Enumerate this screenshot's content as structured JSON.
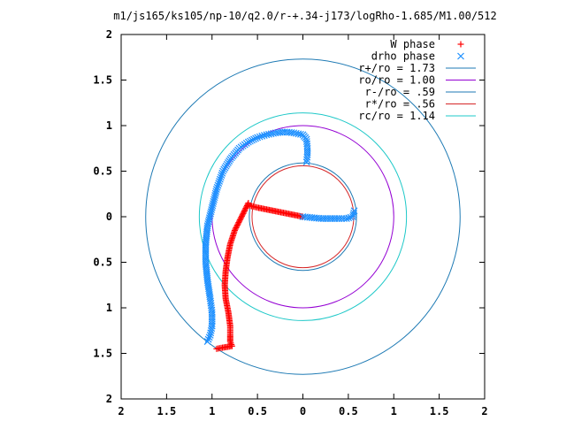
{
  "chart_data": {
    "type": "scatter",
    "title": "m1/js165/ks105/np-10/q2.0/r-+.34-j173/logRho-1.685/M1.00/512",
    "xlabel": "",
    "ylabel": "",
    "xlim": [
      2,
      -2
    ],
    "ylim": [
      -2,
      2
    ],
    "x_ticks": [
      2,
      1.5,
      1,
      0.5,
      0,
      0.5,
      1,
      1.5,
      2
    ],
    "x_tick_labels": [
      "2",
      "1.5",
      "1",
      "0.5",
      "0",
      "0.5",
      "1",
      "1.5",
      "2"
    ],
    "y_ticks": [
      2,
      1.5,
      1,
      0.5,
      0,
      -0.5,
      -1,
      -1.5,
      -2
    ],
    "y_tick_labels": [
      "2",
      "1.5",
      "1",
      "0.5",
      "0",
      "0.5",
      "1",
      "1.5",
      "2"
    ],
    "grid": false,
    "legend_position": "top-right",
    "series": [
      {
        "name": "W phase",
        "marker": "+",
        "color": "#ff0000",
        "points": [
          [
            0,
            0
          ],
          [
            0.1,
            0.02
          ],
          [
            0.2,
            0.04
          ],
          [
            0.3,
            0.06
          ],
          [
            0.4,
            0.08
          ],
          [
            0.5,
            0.1
          ],
          [
            0.58,
            0.12
          ],
          [
            0.58,
            0.12
          ],
          [
            0.6,
            0.13
          ],
          [
            0.6,
            0.15
          ],
          [
            0.65,
            0.05
          ],
          [
            0.7,
            -0.05
          ],
          [
            0.75,
            -0.15
          ],
          [
            0.8,
            -0.3
          ],
          [
            0.83,
            -0.45
          ],
          [
            0.85,
            -0.6
          ],
          [
            0.86,
            -0.75
          ],
          [
            0.85,
            -0.9
          ],
          [
            0.82,
            -1.05
          ],
          [
            0.8,
            -1.2
          ],
          [
            0.8,
            -1.3
          ],
          [
            0.8,
            -1.37
          ],
          [
            0.78,
            -1.42
          ],
          [
            0.9,
            -1.44
          ],
          [
            0.95,
            -1.45
          ]
        ]
      },
      {
        "name": "drho phase",
        "marker": "x",
        "color": "#1e90ff",
        "points": [
          [
            0,
            0
          ],
          [
            -0.1,
            -0.01
          ],
          [
            -0.2,
            -0.02
          ],
          [
            -0.3,
            -0.02
          ],
          [
            -0.4,
            -0.02
          ],
          [
            -0.48,
            -0.02
          ],
          [
            -0.55,
            0.0
          ],
          [
            -0.56,
            0.04
          ],
          [
            -0.57,
            0.09
          ],
          [
            -0.04,
            0.6
          ],
          [
            -0.05,
            0.68
          ],
          [
            -0.05,
            0.75
          ],
          [
            -0.04,
            0.85
          ],
          [
            0.0,
            0.9
          ],
          [
            0.1,
            0.92
          ],
          [
            0.2,
            0.93
          ],
          [
            0.3,
            0.92
          ],
          [
            0.4,
            0.9
          ],
          [
            0.5,
            0.87
          ],
          [
            0.6,
            0.82
          ],
          [
            0.7,
            0.75
          ],
          [
            0.8,
            0.63
          ],
          [
            0.88,
            0.5
          ],
          [
            0.95,
            0.3
          ],
          [
            1.0,
            0.1
          ],
          [
            1.05,
            -0.1
          ],
          [
            1.07,
            -0.3
          ],
          [
            1.07,
            -0.5
          ],
          [
            1.05,
            -0.7
          ],
          [
            1.02,
            -0.9
          ],
          [
            1.0,
            -1.05
          ],
          [
            1.0,
            -1.2
          ],
          [
            1.02,
            -1.3
          ],
          [
            1.05,
            -1.37
          ]
        ]
      }
    ],
    "circles": [
      {
        "name": "r+/ro = 1.73",
        "radius": 1.73,
        "color": "#1e7ab4"
      },
      {
        "name": "ro/ro = 1.00",
        "radius": 1.0,
        "color": "#9400d3"
      },
      {
        "name": "r-/ro = .59",
        "radius": 0.59,
        "color": "#1e7ab4"
      },
      {
        "name": "r*/ro = .56",
        "radius": 0.56,
        "color": "#d62728"
      },
      {
        "name": "rc/ro = 1.14",
        "radius": 1.14,
        "color": "#1ec8c8"
      }
    ],
    "legend": [
      {
        "label": "W phase",
        "kind": "marker",
        "marker": "+",
        "color": "#ff0000"
      },
      {
        "label": "drho phase",
        "kind": "marker",
        "marker": "x",
        "color": "#1e90ff"
      },
      {
        "label": "r+/ro = 1.73",
        "kind": "line",
        "color": "#1e7ab4"
      },
      {
        "label": "ro/ro = 1.00",
        "kind": "line",
        "color": "#9400d3"
      },
      {
        "label": "r-/ro = .59",
        "kind": "line",
        "color": "#1e7ab4"
      },
      {
        "label": "r*/ro = .56",
        "kind": "line",
        "color": "#d62728"
      },
      {
        "label": "rc/ro = 1.14",
        "kind": "line",
        "color": "#1ec8c8"
      }
    ]
  }
}
